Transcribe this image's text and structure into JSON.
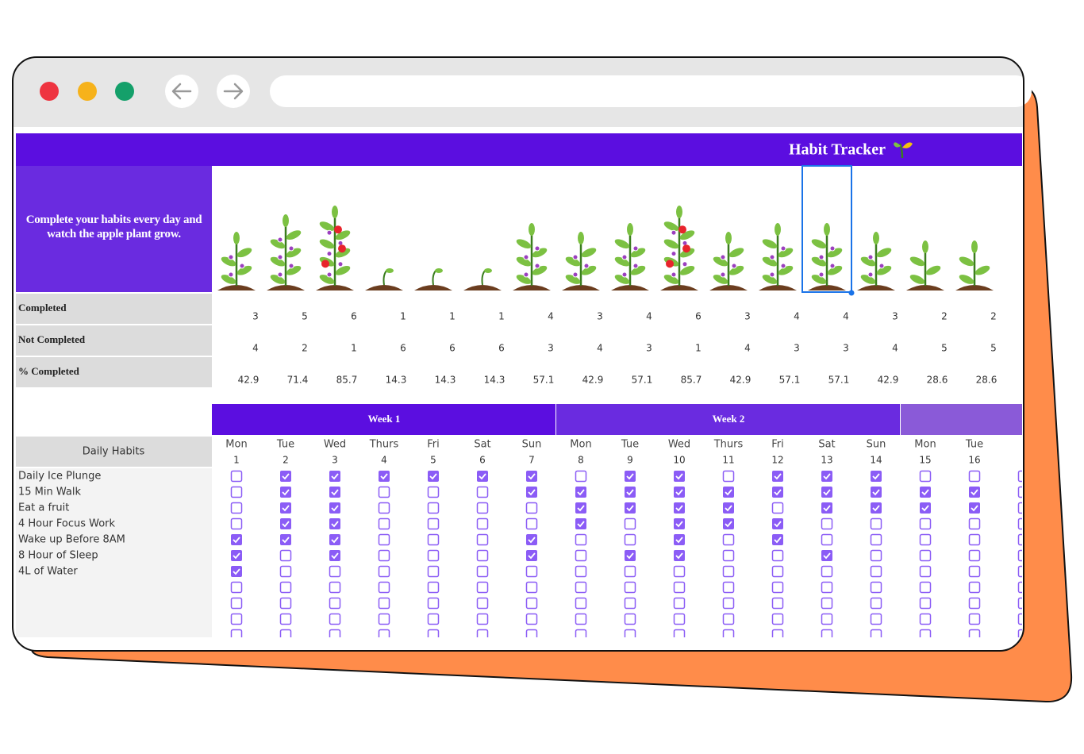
{
  "header": {
    "title": "Habit Tracker"
  },
  "intro": "Complete your habits every day and watch the apple plant grow.",
  "summary": {
    "labels": [
      "Completed",
      "Not Completed",
      "% Completed"
    ],
    "completed": [
      3,
      5,
      6,
      1,
      1,
      1,
      4,
      3,
      4,
      6,
      3,
      4,
      4,
      3,
      2,
      2
    ],
    "not_completed": [
      4,
      2,
      1,
      6,
      6,
      6,
      3,
      4,
      3,
      1,
      4,
      3,
      3,
      4,
      5,
      5
    ],
    "percent_completed": [
      42.9,
      71.4,
      85.7,
      14.3,
      14.3,
      14.3,
      57.1,
      42.9,
      57.1,
      85.7,
      42.9,
      57.1,
      57.1,
      42.9,
      28.6,
      28.6
    ]
  },
  "weeks": [
    "Week 1",
    "Week 2"
  ],
  "days": {
    "names": [
      "Mon",
      "Tue",
      "Wed",
      "Thurs",
      "Fri",
      "Sat",
      "Sun",
      "Mon",
      "Tue",
      "Wed",
      "Thurs",
      "Fri",
      "Sat",
      "Sun",
      "Mon",
      "Tue"
    ],
    "numbers": [
      1,
      2,
      3,
      4,
      5,
      6,
      7,
      8,
      9,
      10,
      11,
      12,
      13,
      14,
      15,
      16
    ]
  },
  "habits": {
    "header": "Daily Habits",
    "names": [
      "Daily Ice Plunge",
      "15 Min Walk",
      "Eat a fruit",
      "4 Hour Focus Work",
      "Wake up Before 8AM",
      "8 Hour of Sleep",
      "4L of Water"
    ],
    "checks": [
      [
        false,
        true,
        true,
        true,
        true,
        true,
        true,
        false,
        true,
        true,
        false,
        true,
        true,
        true,
        false,
        false
      ],
      [
        false,
        true,
        true,
        false,
        false,
        false,
        true,
        true,
        true,
        true,
        true,
        true,
        true,
        true,
        true,
        true
      ],
      [
        false,
        true,
        true,
        false,
        false,
        false,
        false,
        true,
        true,
        true,
        true,
        false,
        true,
        true,
        true,
        true
      ],
      [
        false,
        true,
        true,
        false,
        false,
        false,
        false,
        true,
        false,
        true,
        true,
        true,
        false,
        false,
        false,
        false
      ],
      [
        true,
        true,
        true,
        false,
        false,
        false,
        true,
        false,
        false,
        true,
        false,
        true,
        false,
        false,
        false,
        false
      ],
      [
        true,
        false,
        true,
        false,
        false,
        false,
        true,
        false,
        true,
        true,
        false,
        false,
        true,
        false,
        false,
        false
      ],
      [
        true,
        false,
        false,
        false,
        false,
        false,
        false,
        false,
        false,
        false,
        false,
        false,
        false,
        false,
        false,
        false
      ]
    ]
  }
}
